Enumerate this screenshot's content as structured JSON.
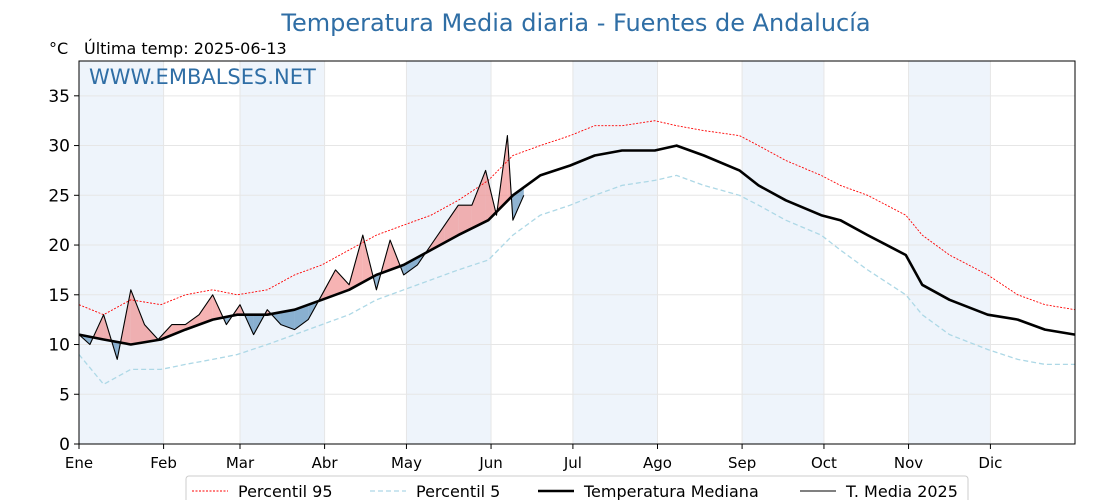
{
  "chart_data": {
    "type": "line",
    "title": "Temperatura Media diaria - Fuentes de Andalucía",
    "unit_label": "°C",
    "subtitle": "Última temp: 2025-06-13",
    "watermark": "WWW.EMBALSES.NET",
    "ylim": [
      0,
      38.5
    ],
    "yticks": [
      0,
      5,
      10,
      15,
      20,
      25,
      30,
      35
    ],
    "x_unit": "day_of_year",
    "xlim": [
      1,
      366
    ],
    "months": [
      "Ene",
      "Feb",
      "Mar",
      "Abr",
      "May",
      "Jun",
      "Jul",
      "Ago",
      "Sep",
      "Oct",
      "Nov",
      "Dic"
    ],
    "month_start_days": [
      1,
      32,
      60,
      91,
      121,
      152,
      182,
      213,
      244,
      274,
      305,
      335
    ],
    "grid": true,
    "legend": "bottom-center",
    "colors": {
      "p95": "#ff0000",
      "p5": "#add8e6",
      "median": "#000000",
      "current": "#000000",
      "above_fill": "#f08080",
      "below_fill": "#4682b4",
      "title": "#2f6ea5",
      "shade": "#eef4fb"
    },
    "series": [
      {
        "name": "Percentil 95",
        "style": "dotted",
        "x": [
          1,
          10,
          20,
          31,
          40,
          50,
          59,
          70,
          80,
          90,
          100,
          110,
          120,
          130,
          140,
          151,
          160,
          170,
          181,
          190,
          200,
          212,
          220,
          230,
          243,
          250,
          260,
          273,
          280,
          290,
          304,
          310,
          320,
          334,
          345,
          355,
          366
        ],
        "values": [
          14.0,
          13.0,
          14.5,
          14.0,
          15.0,
          15.5,
          15.0,
          15.5,
          17.0,
          18.0,
          19.5,
          21.0,
          22.0,
          23.0,
          24.5,
          26.5,
          29.0,
          30.0,
          31.0,
          32.0,
          32.0,
          32.5,
          32.0,
          31.5,
          31.0,
          30.0,
          28.5,
          27.0,
          26.0,
          25.0,
          23.0,
          21.0,
          19.0,
          17.0,
          15.0,
          14.0,
          13.5
        ]
      },
      {
        "name": "Percentil 5",
        "style": "dashed",
        "x": [
          1,
          10,
          20,
          31,
          40,
          50,
          59,
          70,
          80,
          90,
          100,
          110,
          120,
          130,
          140,
          151,
          160,
          170,
          181,
          190,
          200,
          212,
          220,
          230,
          243,
          250,
          260,
          273,
          280,
          290,
          304,
          310,
          320,
          334,
          345,
          355,
          366
        ],
        "values": [
          9.0,
          6.0,
          7.5,
          7.5,
          8.0,
          8.5,
          9.0,
          10.0,
          11.0,
          12.0,
          13.0,
          14.5,
          15.5,
          16.5,
          17.5,
          18.5,
          21.0,
          23.0,
          24.0,
          25.0,
          26.0,
          26.5,
          27.0,
          26.0,
          25.0,
          24.0,
          22.5,
          21.0,
          19.5,
          17.5,
          15.0,
          13.0,
          11.0,
          9.5,
          8.5,
          8.0,
          8.0
        ]
      },
      {
        "name": "Temperatura Mediana",
        "style": "solid-thick",
        "x": [
          1,
          10,
          20,
          31,
          40,
          50,
          59,
          70,
          80,
          90,
          100,
          110,
          120,
          130,
          140,
          151,
          160,
          170,
          181,
          190,
          200,
          212,
          220,
          230,
          243,
          250,
          260,
          273,
          280,
          290,
          304,
          310,
          320,
          334,
          345,
          355,
          366
        ],
        "values": [
          11.0,
          10.5,
          10.0,
          10.5,
          11.5,
          12.5,
          13.0,
          13.0,
          13.5,
          14.5,
          15.5,
          17.0,
          18.0,
          19.5,
          21.0,
          22.5,
          25.0,
          27.0,
          28.0,
          29.0,
          29.5,
          29.5,
          30.0,
          29.0,
          27.5,
          26.0,
          24.5,
          23.0,
          22.5,
          21.0,
          19.0,
          16.0,
          14.5,
          13.0,
          12.5,
          11.5,
          11.0
        ]
      },
      {
        "name": "T. Media 2025",
        "style": "solid-thin",
        "x": [
          1,
          5,
          10,
          15,
          20,
          25,
          30,
          35,
          40,
          45,
          50,
          55,
          60,
          65,
          70,
          75,
          80,
          85,
          90,
          95,
          100,
          105,
          110,
          115,
          120,
          125,
          130,
          135,
          140,
          145,
          150,
          154,
          158,
          160,
          164
        ],
        "values": [
          11.0,
          10.0,
          13.0,
          8.5,
          15.5,
          12.0,
          10.5,
          12.0,
          12.0,
          13.0,
          15.0,
          12.0,
          14.0,
          11.0,
          13.5,
          12.0,
          11.5,
          12.5,
          15.0,
          17.5,
          16.0,
          21.0,
          15.5,
          20.5,
          17.0,
          18.0,
          20.0,
          22.0,
          24.0,
          24.0,
          27.5,
          23.0,
          31.0,
          22.5,
          25.0
        ]
      }
    ]
  }
}
